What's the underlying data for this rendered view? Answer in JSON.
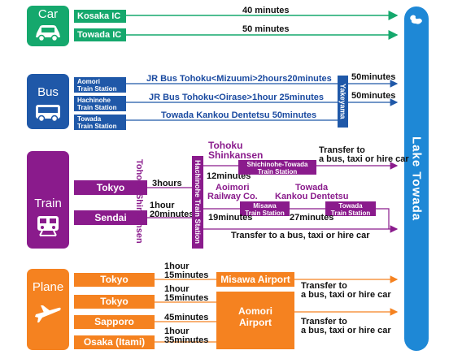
{
  "colors": {
    "car": "#15a86d",
    "bus": "#1f58a8",
    "train": "#8a1b8c",
    "plane": "#f58220",
    "lake": "#1e88d6"
  },
  "destination": "Lake Towada",
  "car": {
    "mode": "Car",
    "routes": [
      {
        "from": "Kosaka IC",
        "time": "40 minutes"
      },
      {
        "from": "Towada IC",
        "time": "50 minutes"
      }
    ]
  },
  "bus": {
    "mode": "Bus",
    "stations": [
      {
        "l1": "Aomori",
        "l2": "Train Station"
      },
      {
        "l1": "Hachinohe",
        "l2": "Train Station"
      },
      {
        "l1": "Towada",
        "l2": "Train Station"
      }
    ],
    "line1": "JR Bus Tohoku<Mizuumi>2hours20minutes",
    "line2": "JR Bus Tohoku<Oirase>1hour  25minutes",
    "line3": "Towada Kankou Dentetsu 50minutes",
    "yakeyama": "Yakeyama",
    "time1": "50minutes",
    "time2": "50minutes"
  },
  "train": {
    "mode": "Train",
    "tokyo": "Tokyo",
    "sendai": "Sendai",
    "shinkansen_v": "Tohoku Shinkansen",
    "hachinohe_v": "Hachinohe Train Station",
    "t_tokyo": "3hours",
    "t_sendai1": "1hour",
    "t_sendai2": "20minutes",
    "tohoku1": "Tohoku",
    "tohoku2": "Shinkansen",
    "t12": "12minutes",
    "shichinohe1": "Shichinohe-Towada",
    "shichinohe2": "Train Station",
    "transfer1a": "Transfer to",
    "transfer1b": "a bus, taxi or hire car",
    "aoimori1": "Aoimori",
    "aoimori2": "Railway Co.",
    "towada1": "Towada",
    "towada2": "Kankou Dentetsu",
    "t19": "19minutes",
    "t27": "27minutes",
    "misawa1": "Misawa",
    "misawa2": "Train Station",
    "towadast1": "Towada",
    "towadast2": "Train Station",
    "transfer2": "Transfer to a bus, taxi or hire car"
  },
  "plane": {
    "mode": "Plane",
    "origins": [
      "Tokyo",
      "Tokyo",
      "Sapporo",
      "Osaka (Itami)"
    ],
    "t1a": "1hour",
    "t1b": "15minutes",
    "t2a": "1hour",
    "t2b": "15minutes",
    "t3": "45minutes",
    "t4a": "1hour",
    "t4b": "35minutes",
    "misawa_airport": "Misawa Airport",
    "aomori_airport1": "Aomori",
    "aomori_airport2": "Airport",
    "transfer1a": "Transfer to",
    "transfer1b": "a bus, taxi or hire car",
    "transfer2a": "Transfer to",
    "transfer2b": "a bus, taxi or hire car"
  }
}
